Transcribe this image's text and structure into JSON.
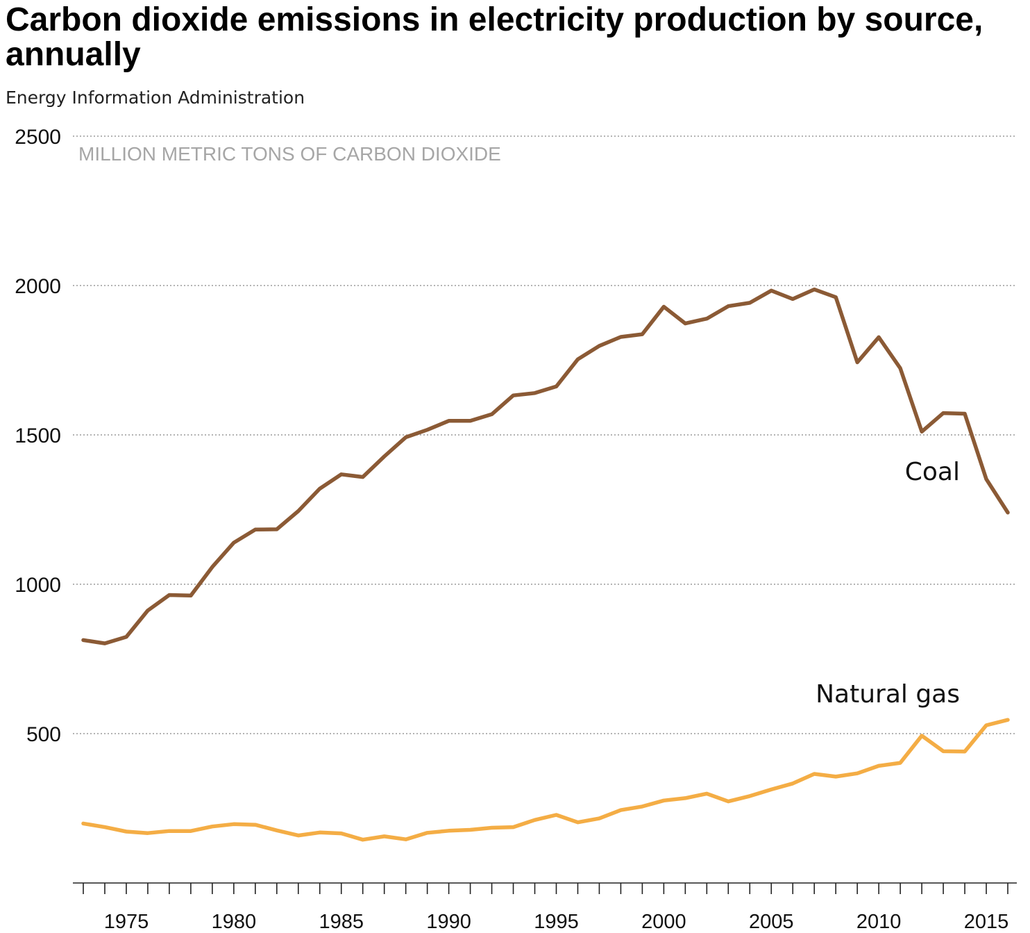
{
  "chart_data": {
    "type": "line",
    "title": "Carbon dioxide emissions in electricity production by source, annually",
    "subtitle": "Energy Information Administration",
    "ylabel": "MILLION METRIC TONS OF CARBON DIOXIDE",
    "xlabel": "",
    "xlim": [
      1973,
      2016
    ],
    "ylim": [
      0,
      2500
    ],
    "yticks": [
      500,
      1000,
      1500,
      2000,
      2500
    ],
    "xticks": [
      1975,
      1980,
      1985,
      1990,
      1995,
      2000,
      2005,
      2010,
      2015
    ],
    "grid": "horizontal-dotted",
    "x": [
      1973,
      1974,
      1975,
      1976,
      1977,
      1978,
      1979,
      1980,
      1981,
      1982,
      1983,
      1984,
      1985,
      1986,
      1987,
      1988,
      1989,
      1990,
      1991,
      1992,
      1993,
      1994,
      1995,
      1996,
      1997,
      1998,
      1999,
      2000,
      2001,
      2002,
      2003,
      2004,
      2005,
      2006,
      2007,
      2008,
      2009,
      2010,
      2011,
      2012,
      2013,
      2014,
      2015,
      2016
    ],
    "series": [
      {
        "name": "Coal",
        "color": "#8b5a35",
        "values": [
          813,
          802,
          824,
          912,
          964,
          962,
          1058,
          1139,
          1183,
          1184,
          1245,
          1320,
          1368,
          1359,
          1428,
          1492,
          1517,
          1547,
          1547,
          1569,
          1632,
          1640,
          1662,
          1753,
          1798,
          1828,
          1837,
          1929,
          1873,
          1889,
          1931,
          1942,
          1983,
          1955,
          1987,
          1961,
          1743,
          1827,
          1723,
          1511,
          1573,
          1571,
          1352,
          1240
        ]
      },
      {
        "name": "Natural gas",
        "color": "#f4ad45",
        "values": [
          199,
          187,
          172,
          167,
          174,
          174,
          189,
          197,
          195,
          176,
          159,
          169,
          166,
          145,
          156,
          146,
          168,
          175,
          178,
          185,
          187,
          211,
          228,
          203,
          216,
          244,
          256,
          276,
          284,
          299,
          273,
          291,
          313,
          333,
          365,
          356,
          367,
          392,
          402,
          493,
          441,
          440,
          528,
          546
        ]
      }
    ]
  }
}
